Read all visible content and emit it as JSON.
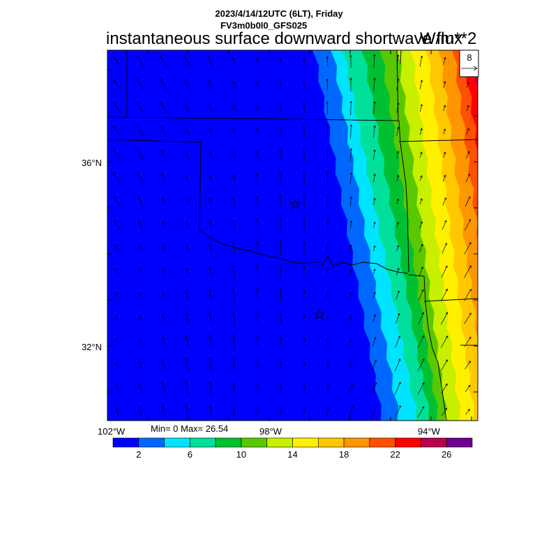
{
  "header": {
    "line1": "2023/4/14/12UTC (6LT), Friday",
    "line2": "FV3m0b0l0_GFS025",
    "title": "instantaneous surface downward shortwave flux",
    "units": "W/m**2"
  },
  "map": {
    "region": "Southern Plains (Oklahoma / Texas)",
    "lat_labels": [
      "36°N",
      "32°N"
    ],
    "lon_labels": [
      "102°W",
      "98°W",
      "94°W"
    ],
    "stats": "Min= 0 Max= 26.54",
    "vector_reference": "8",
    "field_colors": [
      "#0000ff",
      "#0068ff",
      "#00e4ff",
      "#00e09a",
      "#00c032",
      "#5ac800",
      "#c8ee00",
      "#fff000",
      "#ffc800",
      "#ff9600",
      "#ff5000",
      "#ff0000",
      "#b8004e",
      "#6e0090"
    ]
  },
  "colorbar": {
    "labels": [
      "2",
      "6",
      "10",
      "14",
      "18",
      "22",
      "26"
    ],
    "colors": [
      "#0000ff",
      "#0068ff",
      "#00e4ff",
      "#00e09a",
      "#00c032",
      "#5ac800",
      "#c8ee00",
      "#fff000",
      "#ffc800",
      "#ff9600",
      "#ff5000",
      "#ff0000",
      "#b8004e",
      "#6e0090"
    ]
  }
}
